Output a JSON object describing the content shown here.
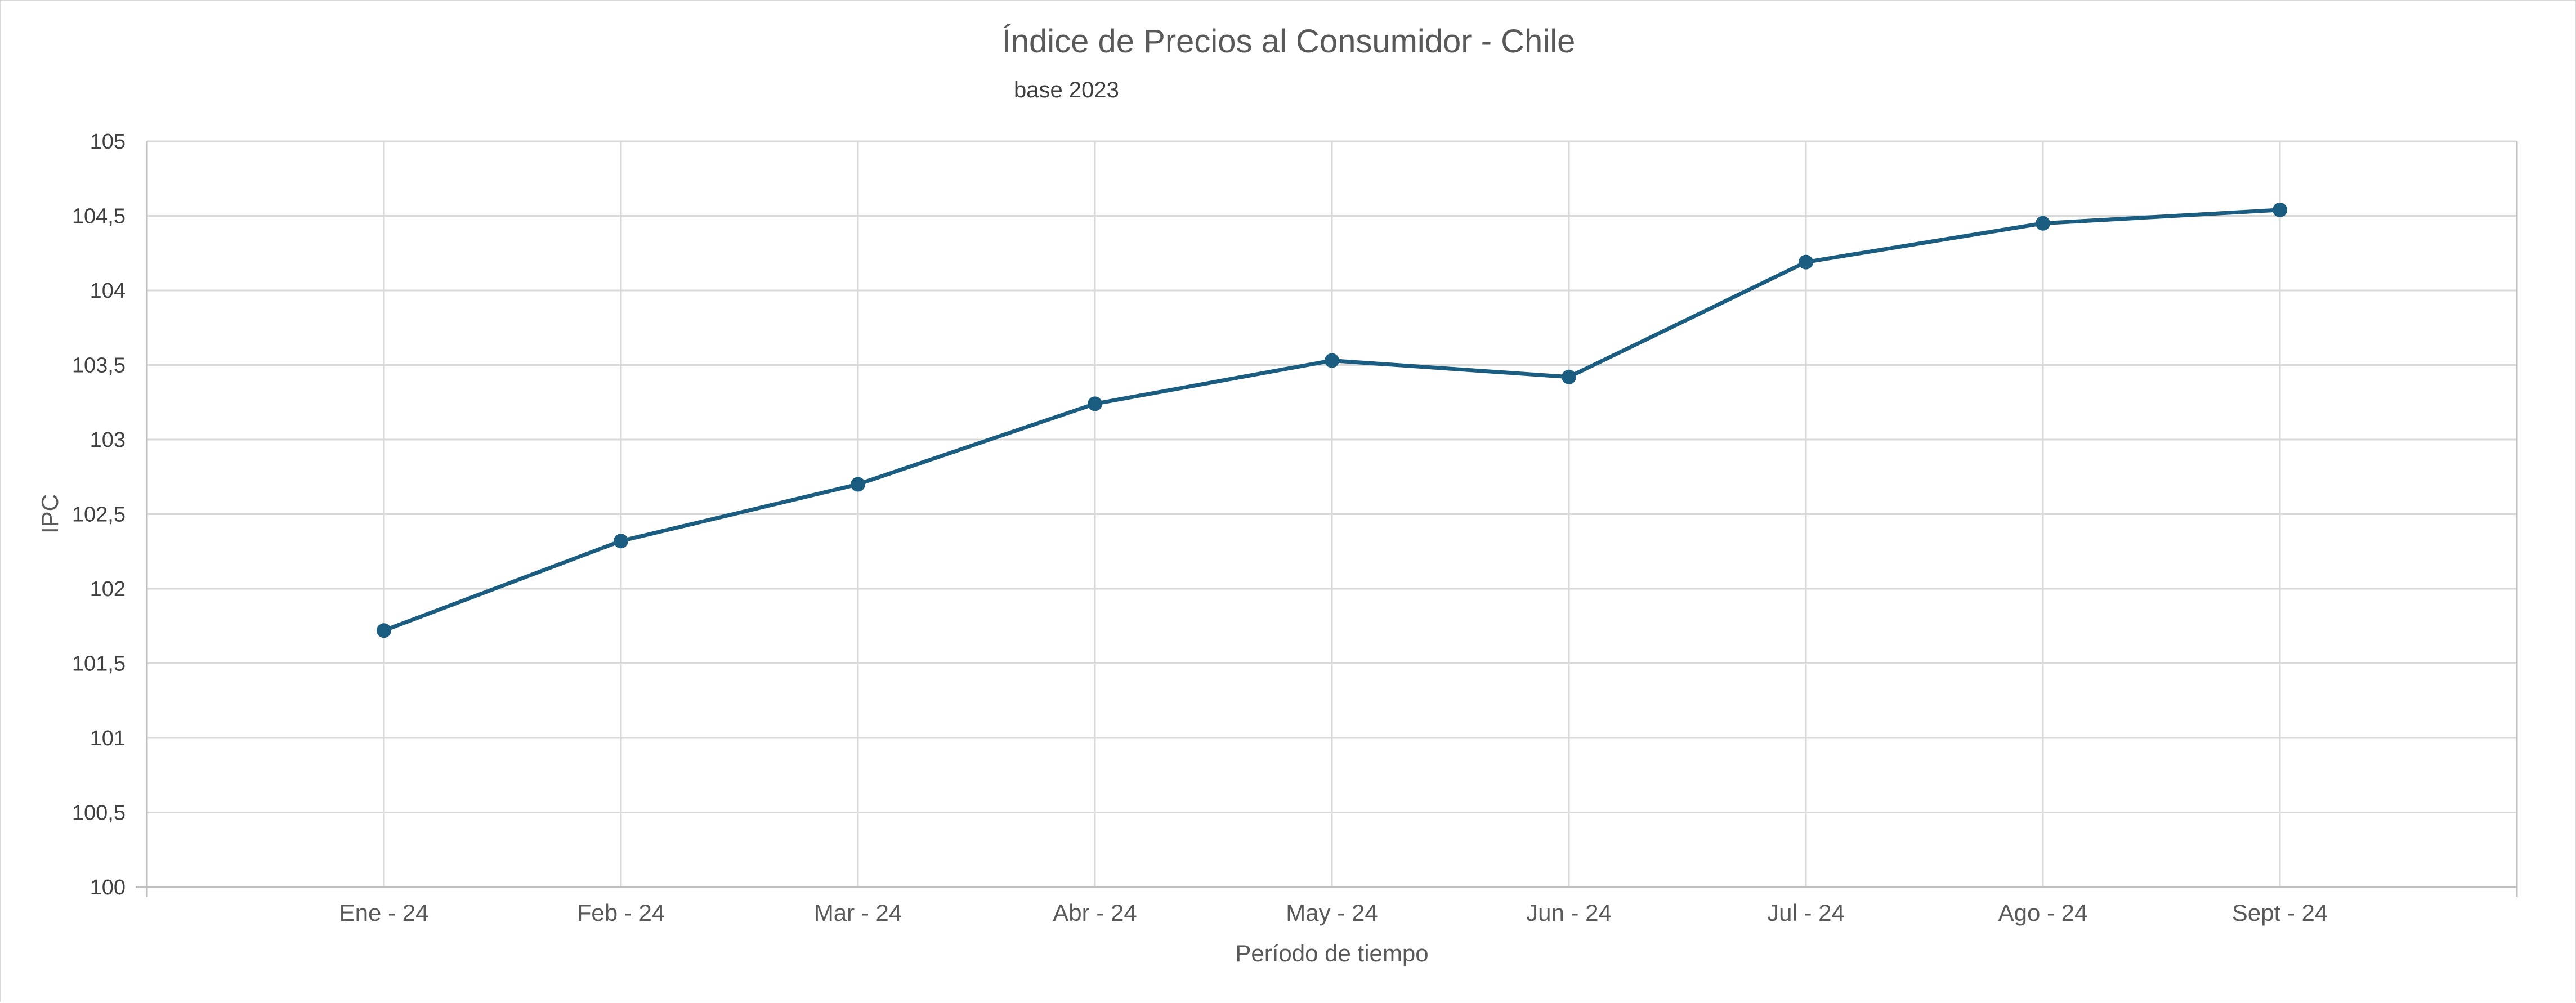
{
  "chart_data": {
    "type": "line",
    "title": "Índice de Precios al Consumidor - Chile",
    "subtitle": "base 2023",
    "xlabel": "Período de tiempo",
    "ylabel": "IPC",
    "categories": [
      "Ene - 24",
      "Feb - 24",
      "Mar - 24",
      "Abr - 24",
      "May - 24",
      "Jun  - 24",
      "Jul - 24",
      "Ago - 24",
      "Sept - 24"
    ],
    "series": [
      {
        "name": "",
        "values": [
          101.72,
          102.32,
          102.7,
          103.24,
          103.53,
          103.42,
          104.19,
          104.45,
          104.54
        ]
      }
    ],
    "ylim": [
      100,
      105
    ],
    "yticks": [
      "100",
      "100,5",
      "101",
      "101,5",
      "102",
      "102,5",
      "103",
      "103,5",
      "104",
      "104,5",
      "105"
    ],
    "grid": true,
    "legend": "none",
    "line_color": "#1a5d80"
  }
}
